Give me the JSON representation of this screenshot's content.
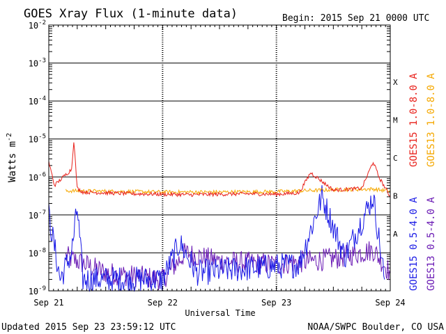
{
  "chart_data": {
    "type": "line",
    "title": "GOES Xray Flux (1-minute data)",
    "begin_label": "Begin:  2015 Sep 21 0000 UTC",
    "ylabel": "Watts m",
    "ylabel_sup": "-2",
    "xlabel": "Universal Time",
    "yscale": "log",
    "ylim": [
      1e-09,
      0.01
    ],
    "y_ticks": [
      {
        "value": 0.01,
        "mant": "10",
        "exp": "-2"
      },
      {
        "value": 0.001,
        "mant": "10",
        "exp": "-3"
      },
      {
        "value": 0.0001,
        "mant": "10",
        "exp": "-4"
      },
      {
        "value": 1e-05,
        "mant": "10",
        "exp": "-5"
      },
      {
        "value": 1e-06,
        "mant": "10",
        "exp": "-6"
      },
      {
        "value": 1e-07,
        "mant": "10",
        "exp": "-7"
      },
      {
        "value": 1e-08,
        "mant": "10",
        "exp": "-8"
      },
      {
        "value": 1e-09,
        "mant": "10",
        "exp": "-9"
      }
    ],
    "x_ticks": [
      "Sep 21",
      "Sep 22",
      "Sep 23",
      "Sep 24"
    ],
    "xlim_days": [
      0,
      3
    ],
    "flare_classes": [
      {
        "label": "X",
        "value": 0.0001
      },
      {
        "label": "M",
        "value": 1e-05
      },
      {
        "label": "C",
        "value": 1e-06
      },
      {
        "label": "B",
        "value": 1e-07
      },
      {
        "label": "A",
        "value": 1e-08
      }
    ],
    "series": [
      {
        "name": "GOES15 1.0-8.0 A",
        "color": "#e8201a",
        "points": [
          [
            0,
            2.5e-06
          ],
          [
            0.05,
            6e-07
          ],
          [
            0.2,
            1.6e-06
          ],
          [
            0.22,
            9e-06
          ],
          [
            0.25,
            5e-07
          ],
          [
            0.3,
            4e-07
          ],
          [
            0.5,
            3.8e-07
          ],
          [
            0.75,
            3.6e-07
          ],
          [
            1.0,
            3.5e-07
          ],
          [
            1.25,
            3.4e-07
          ],
          [
            1.5,
            3.5e-07
          ],
          [
            1.75,
            3.6e-07
          ],
          [
            2.0,
            3.5e-07
          ],
          [
            2.2,
            3.8e-07
          ],
          [
            2.3,
            1.3e-06
          ],
          [
            2.5,
            4.5e-07
          ],
          [
            2.75,
            5e-07
          ],
          [
            2.85,
            2.5e-06
          ],
          [
            2.9,
            1e-06
          ],
          [
            3.0,
            3e-07
          ]
        ]
      },
      {
        "name": "GOES13 1.0-8.0 A",
        "color": "#f5a800",
        "points": [
          [
            0.15,
            4.3e-07
          ],
          [
            0.5,
            4.2e-07
          ],
          [
            1.0,
            4e-07
          ],
          [
            1.5,
            4e-07
          ],
          [
            2.0,
            4.1e-07
          ],
          [
            2.2,
            4.3e-07
          ],
          [
            2.5,
            4.6e-07
          ],
          [
            2.85,
            4.8e-07
          ],
          [
            3.0,
            4.2e-07
          ]
        ]
      },
      {
        "name": "GOES15 0.5-4.0 A",
        "color": "#1a1ae6",
        "points": [
          [
            0,
            1e-07
          ],
          [
            0.1,
            2e-09
          ],
          [
            0.2,
            1e-08
          ],
          [
            0.25,
            1.5e-07
          ],
          [
            0.3,
            2e-09
          ],
          [
            1.0,
            2e-09
          ],
          [
            1.15,
            1.8e-08
          ],
          [
            1.3,
            3e-09
          ],
          [
            2.2,
            5e-09
          ],
          [
            2.4,
            3e-07
          ],
          [
            2.6,
            8e-09
          ],
          [
            2.85,
            3e-07
          ],
          [
            2.95,
            2e-09
          ]
        ]
      },
      {
        "name": "GOES13 0.5-4.0 A",
        "color": "#6a1ab4",
        "points": [
          [
            0.15,
            8e-09
          ],
          [
            0.5,
            3e-09
          ],
          [
            1.0,
            2e-09
          ],
          [
            1.2,
            1e-08
          ],
          [
            1.5,
            6e-09
          ],
          [
            2.0,
            5e-09
          ],
          [
            2.5,
            7e-09
          ],
          [
            2.85,
            1.2e-08
          ],
          [
            3.0,
            3e-09
          ]
        ]
      }
    ]
  },
  "footer": {
    "updated": "Updated 2015 Sep 23 23:59:12 UTC",
    "source": "NOAA/SWPC Boulder, CO USA"
  }
}
